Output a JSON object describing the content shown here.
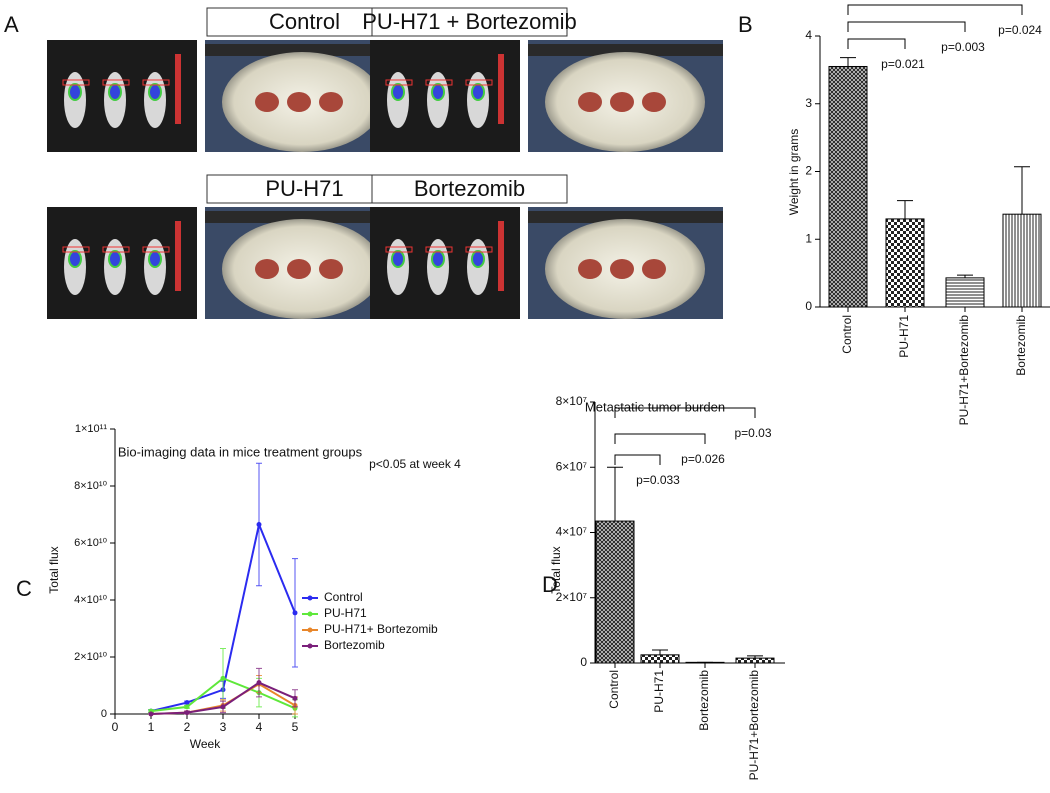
{
  "panel_a": {
    "label": "A",
    "titles": [
      "Control",
      "PU-H71 + Bortezomib",
      "PU-H71",
      "Bortezomib"
    ]
  },
  "chart_data": [
    {
      "type": "bar",
      "label": "B",
      "ylabel": "Weight in grams",
      "categories": [
        "Control",
        "PU-H71",
        "PU-H71+Bortezomib",
        "Bortezomib"
      ],
      "values": [
        3.55,
        1.3,
        0.43,
        1.37
      ],
      "errors": [
        0.13,
        0.27,
        0.04,
        0.7
      ],
      "patterns": [
        "crosshatch",
        "checker",
        "horizontal",
        "vertical"
      ],
      "ylim": [
        0,
        4
      ],
      "yticks": [
        0,
        1,
        2,
        3,
        4
      ],
      "comparisons": [
        {
          "label": "p=0.021",
          "from": "Control",
          "to": "PU-H71"
        },
        {
          "label": "p=0.003",
          "from": "Control",
          "to": "PU-H71+Bortezomib"
        },
        {
          "label": "p=0.024",
          "from": "Control",
          "to": "Bortezomib"
        }
      ]
    },
    {
      "type": "line",
      "label": "C",
      "title": "Bio-imaging data in mice treatment groups",
      "xlabel": "Week",
      "ylabel": "Total flux",
      "annotation": "p<0.05 at week 4",
      "x": [
        1,
        2,
        3,
        4,
        5
      ],
      "xlim": [
        0,
        5
      ],
      "xticks": [
        0,
        1,
        2,
        3,
        4,
        5
      ],
      "ylim": [
        0,
        100000000000
      ],
      "yticks": [
        {
          "value": 0,
          "label": "0"
        },
        {
          "value": 20000000000,
          "label": "2×10¹⁰"
        },
        {
          "value": 40000000000,
          "label": "4×10¹⁰"
        },
        {
          "value": 60000000000,
          "label": "6×10¹⁰"
        },
        {
          "value": 80000000000,
          "label": "8×10¹⁰"
        },
        {
          "value": 100000000000,
          "label": "1×10¹¹"
        }
      ],
      "legend": "right",
      "series": [
        {
          "name": "Control",
          "color": "#2b2bf0",
          "values": [
            1000000000,
            4000000000,
            8500000000,
            66500000000,
            35500000000
          ],
          "errors": [
            500000000,
            500000000,
            3000000000,
            21500000000,
            19000000000
          ]
        },
        {
          "name": "PU-H71",
          "color": "#5ee83a",
          "values": [
            1000000000,
            2500000000,
            12500000000,
            7500000000,
            2000000000
          ],
          "errors": [
            500000000,
            500000000,
            10500000000,
            5000000000,
            3000000000
          ]
        },
        {
          "name": "PU-H71+ Bortezomib",
          "color": "#e8862a",
          "values": [
            0,
            500000000,
            3000000000,
            10500000000,
            3000000000
          ],
          "errors": [
            0,
            500000000,
            2000000000,
            3000000000,
            3000000000
          ]
        },
        {
          "name": "Bortezomib",
          "color": "#7a1f7a",
          "values": [
            0,
            500000000,
            2500000000,
            11000000000,
            5500000000
          ],
          "errors": [
            0,
            500000000,
            2000000000,
            5000000000,
            3000000000
          ]
        }
      ]
    },
    {
      "type": "bar",
      "label": "D",
      "title": "Metastatic tumor burden",
      "ylabel": "Total flux",
      "categories": [
        "Control",
        "PU-H71",
        "Bortezomib",
        "PU-H71+Bortezomib"
      ],
      "values": [
        43500000,
        2500000,
        200000,
        1500000
      ],
      "errors": [
        16500000,
        1500000,
        0,
        700000
      ],
      "patterns": [
        "crosshatch",
        "checker",
        "horizontal",
        "checker"
      ],
      "ylim": [
        0,
        80000000
      ],
      "yticks": [
        {
          "value": 0,
          "label": "0"
        },
        {
          "value": 20000000,
          "label": "2×10⁷"
        },
        {
          "value": 40000000,
          "label": "4×10⁷"
        },
        {
          "value": 60000000,
          "label": "6×10⁷"
        },
        {
          "value": 80000000,
          "label": "8×10⁷"
        }
      ],
      "comparisons": [
        {
          "label": "p=0.033",
          "from": "Control",
          "to": "PU-H71"
        },
        {
          "label": "p=0.026",
          "from": "Control",
          "to": "Bortezomib"
        },
        {
          "label": "p=0.03",
          "from": "Control",
          "to": "PU-H71+Bortezomib"
        }
      ]
    }
  ]
}
